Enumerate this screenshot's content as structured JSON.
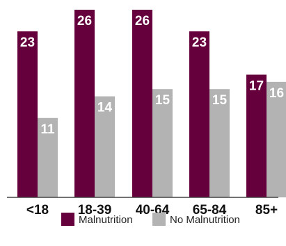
{
  "chart_data": {
    "type": "bar",
    "categories": [
      "<18",
      "18-39",
      "40-64",
      "65-84",
      "85+"
    ],
    "series": [
      {
        "name": "Malnutrition",
        "values": [
          23,
          26,
          26,
          23,
          17
        ],
        "color": "#66003c"
      },
      {
        "name": "No Malnutrition",
        "values": [
          11,
          14,
          15,
          15,
          16
        ],
        "color": "#b3b3b3"
      }
    ],
    "ylim": [
      0,
      26
    ],
    "grid": false,
    "legend": "bottom",
    "data_labels": true
  }
}
